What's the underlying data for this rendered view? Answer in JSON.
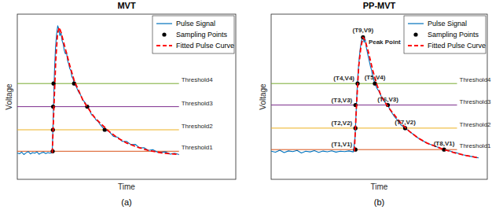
{
  "chart_data": [
    {
      "type": "line",
      "title": "MVT",
      "x_label": "Time",
      "y_label": "Voltage",
      "panel_label": "(a)",
      "xlim": [
        0,
        100
      ],
      "ylim": [
        0,
        100
      ],
      "tick_labels": false,
      "legend": "top-right",
      "series": [
        {
          "name": "Pulse Signal",
          "type": "line",
          "color": "#0072bd",
          "line_style": "solid",
          "x": [
            0,
            1,
            2,
            3,
            4,
            5,
            6,
            7,
            8,
            9,
            10,
            11,
            12,
            13,
            14,
            15,
            16,
            16.5,
            17,
            17.5,
            18,
            18.5,
            19,
            19.5,
            20,
            20.5,
            21,
            21.5,
            22,
            22.5,
            23,
            23.5,
            24,
            24.5,
            25,
            25.5,
            26,
            27,
            28,
            29,
            30,
            31,
            32,
            33,
            34,
            35,
            36,
            37,
            38,
            39,
            40,
            42,
            44,
            46,
            48,
            50,
            52,
            54,
            56,
            58,
            60,
            62,
            64,
            66,
            68,
            70,
            72,
            74
          ],
          "values": [
            16,
            15.5,
            16.5,
            15,
            16,
            16.8,
            15.4,
            16.2,
            15.8,
            16.6,
            15.2,
            16,
            16.4,
            15.6,
            16.2,
            15.8,
            16.3,
            40,
            65,
            80,
            88,
            93,
            91,
            87,
            89,
            84,
            82,
            78,
            76,
            77,
            72,
            70,
            67,
            66,
            62,
            61,
            58,
            56,
            53,
            51,
            48,
            46.5,
            44,
            42.5,
            39,
            38.5,
            36,
            35,
            33,
            31.5,
            30,
            29,
            26,
            25.5,
            23,
            23,
            21,
            21.2,
            19,
            19.2,
            17.5,
            18,
            16.5,
            16.4,
            16.6,
            15.2,
            15.8,
            15
          ]
        },
        {
          "name": "Sampling Points",
          "type": "scatter",
          "color": "#000000",
          "marker": "circle",
          "x": [
            16.2,
            16.3,
            16.4,
            16.6,
            26,
            32,
            40
          ],
          "values": [
            17,
            30,
            44,
            58,
            58,
            44,
            30
          ]
        },
        {
          "name": "Fitted Pulse Curve",
          "type": "line",
          "color": "#ff0000",
          "line_style": "dashed",
          "x": [
            16,
            16.8,
            17.6,
            18.4,
            19.2,
            20,
            21,
            22,
            23,
            24,
            26,
            28,
            30,
            32,
            35,
            38,
            42,
            46,
            50,
            55,
            60,
            66,
            74
          ],
          "values": [
            16,
            45,
            72,
            88,
            92,
            89,
            84,
            79,
            74,
            69,
            60,
            54,
            48,
            44,
            38,
            34,
            29,
            25,
            22,
            19.5,
            17.5,
            16,
            15
          ]
        }
      ],
      "thresholds": [
        {
          "name": "Threshold1",
          "value": 17,
          "color": "#d95319",
          "x": [
            0,
            74
          ]
        },
        {
          "name": "Threshold2",
          "value": 30,
          "color": "#edb120",
          "x": [
            0,
            74
          ]
        },
        {
          "name": "Threshold3",
          "value": 44,
          "color": "#7e2f8e",
          "x": [
            0,
            74
          ]
        },
        {
          "name": "Threshold4",
          "value": 58,
          "color": "#77ac30",
          "x": [
            0,
            74
          ]
        }
      ]
    },
    {
      "type": "line",
      "title": "PP-MVT",
      "x_label": "Time",
      "y_label": "Voltage",
      "panel_label": "(b)",
      "xlim": [
        0,
        100
      ],
      "ylim": [
        0,
        100
      ],
      "tick_labels": false,
      "legend": "top-right",
      "series": [
        {
          "name": "Pulse Signal",
          "type": "line",
          "color": "#0072bd",
          "line_style": "solid",
          "x": [
            0,
            2,
            4,
            6,
            8,
            10,
            12,
            14,
            16,
            18,
            20,
            22,
            24,
            26,
            28,
            30,
            32,
            34,
            36,
            38,
            38.8,
            39.3,
            39.8,
            40.3,
            40.8,
            41.3,
            41.8,
            42.5,
            43,
            43.5,
            44,
            44.5,
            45,
            45.5,
            46,
            46.5,
            47,
            48,
            49,
            50,
            51,
            52,
            53,
            54,
            55,
            56,
            57,
            58,
            59,
            60,
            62,
            64,
            66,
            68,
            70,
            72,
            74,
            76,
            78,
            80,
            82,
            84,
            86,
            88,
            90,
            92,
            94,
            96
          ],
          "values": [
            17,
            16.4,
            17.6,
            16.2,
            17.2,
            16.8,
            17.5,
            16,
            17,
            16.6,
            17.4,
            16.3,
            17.1,
            16.7,
            17.3,
            16.5,
            17,
            16.8,
            17.2,
            16.6,
            25,
            40,
            55,
            66,
            74,
            80,
            84,
            86,
            83,
            85,
            80,
            77,
            74,
            71,
            68,
            66,
            62,
            58,
            55,
            53,
            50,
            48,
            46,
            45,
            42,
            40,
            38,
            36.5,
            35,
            33,
            31,
            29,
            27,
            25,
            23.5,
            22,
            21,
            20,
            19,
            18,
            17.5,
            16.5,
            16,
            15,
            14.5,
            14,
            13.5,
            13
          ]
        },
        {
          "name": "Sampling Points",
          "type": "scatter",
          "color": "#000000",
          "marker": "circle",
          "x": [
            39,
            39,
            39,
            40,
            42.5,
            48,
            54,
            62,
            80
          ],
          "values": [
            18,
            31,
            45,
            58,
            86,
            58,
            45,
            31,
            18
          ],
          "labels": [
            "(T1,V1)",
            "(T2,V2)",
            "(T3,V3)",
            "(T4,V4)",
            "(T9,V9)",
            "(T5,V4)",
            "(T6,V3)",
            "(T7,V2)",
            "(T8,V1)"
          ]
        },
        {
          "name": "Fitted Pulse Curve",
          "type": "line",
          "color": "#ff0000",
          "line_style": "dashed",
          "x": [
            38.5,
            39.5,
            40.5,
            41.5,
            42.5,
            43.5,
            45,
            47,
            49,
            51,
            54,
            57,
            60,
            64,
            68,
            72,
            76,
            80,
            85,
            90,
            96
          ],
          "values": [
            17,
            45,
            68,
            80,
            86,
            84,
            77,
            66,
            57,
            50,
            44,
            39,
            34,
            29,
            25,
            22,
            20,
            18,
            16,
            14.5,
            13
          ]
        }
      ],
      "thresholds": [
        {
          "name": "Threshold1",
          "value": 18,
          "color": "#d95319",
          "x": [
            0,
            86
          ]
        },
        {
          "name": "Threshold2",
          "value": 31,
          "color": "#edb120",
          "x": [
            0,
            86
          ]
        },
        {
          "name": "Threshold3",
          "value": 45,
          "color": "#7e2f8e",
          "x": [
            0,
            86
          ]
        },
        {
          "name": "Threshold4",
          "value": 58,
          "color": "#77ac30",
          "x": [
            0,
            86
          ]
        }
      ],
      "annotations": [
        {
          "text": "Peak Point",
          "x": 42.5,
          "y": 86
        }
      ]
    }
  ]
}
